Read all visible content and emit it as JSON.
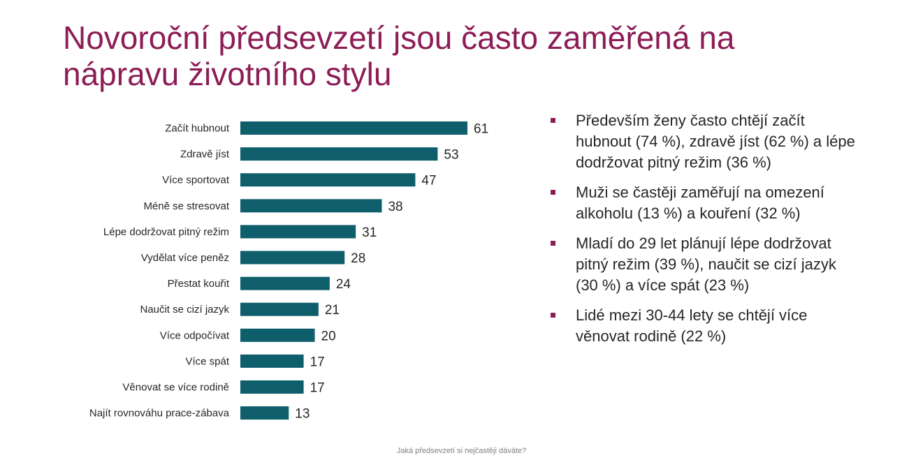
{
  "title": "Novoroční předsevzetí jsou často zaměřená na nápravu životního stylu",
  "colors": {
    "title": "#8c1d56",
    "bar": "#0e5e6b",
    "bullet_marker": "#8c1d56",
    "text": "#262626",
    "footnote": "#7f7f7f"
  },
  "chart_data": {
    "type": "bar",
    "orientation": "horizontal",
    "categories": [
      "Začít hubnout",
      "Zdravě jíst",
      "Více sportovat",
      "Méně se stresovat",
      "Lépe dodržovat pitný režim",
      "Vydělat více peněz",
      "Přestat kouřit",
      "Naučit se cizí jazyk",
      "Více odpočívat",
      "Více spát",
      "Věnovat se více rodině",
      "Najít rovnováhu prace-zábava"
    ],
    "values": [
      61,
      53,
      47,
      38,
      31,
      28,
      24,
      21,
      20,
      17,
      17,
      13
    ],
    "title": "",
    "xlabel": "",
    "ylabel": "",
    "xlim": [
      0,
      70
    ],
    "grid": false,
    "legend": "none",
    "data_labels": true
  },
  "bullets": [
    "Především ženy často chtějí začít hubnout (74 %), zdravě jíst (62 %) a lépe dodržovat pitný režim (36 %)",
    "Muži se častěji zaměřují na omezení alkoholu (13 %) a kouření (32 %)",
    "Mladí do 29 let plánují lépe dodržovat pitný režim (39 %), naučit se cizí jazyk (30 %) a více spát (23 %)",
    "Lidé mezi 30-44 lety se chtějí více věnovat rodině (22 %)"
  ],
  "footnote": "Jaká předsevzetí si nejčastěji dáváte?"
}
